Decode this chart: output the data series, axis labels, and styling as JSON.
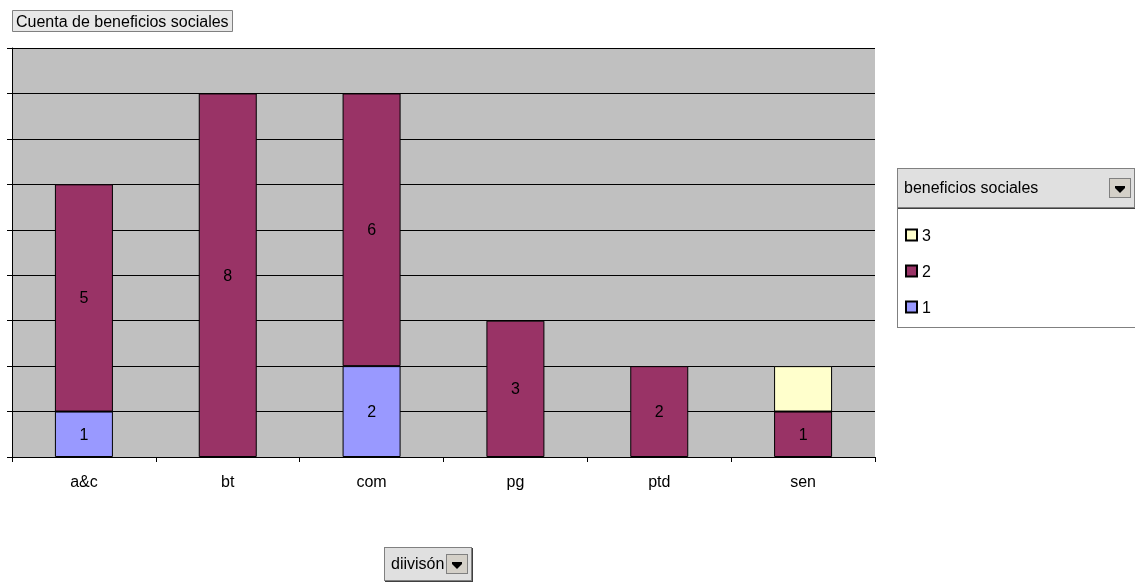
{
  "chart_data": {
    "type": "bar",
    "title": "Cuenta de beneficios sociales",
    "xlabel": "diivisón",
    "legend_title": "beneficios sociales",
    "categories": [
      "a&c",
      "bt",
      "com",
      "pg",
      "ptd",
      "sen"
    ],
    "stacked": true,
    "series": [
      {
        "name": "1",
        "color": "#9999ff",
        "values": [
          1,
          null,
          2,
          null,
          null,
          null
        ],
        "value_labels": [
          "1",
          null,
          "2",
          null,
          null,
          null
        ]
      },
      {
        "name": "2",
        "color": "#993366",
        "values": [
          5,
          8,
          6,
          3,
          2,
          1
        ],
        "value_labels": [
          "5",
          "8",
          "6",
          "3",
          "2",
          "1"
        ]
      },
      {
        "name": "3",
        "color": "#ffffcc",
        "values": [
          null,
          null,
          null,
          null,
          null,
          1
        ],
        "value_labels": [
          null,
          null,
          null,
          null,
          null,
          null
        ]
      }
    ],
    "ylim": [
      0,
      9
    ],
    "yticks": [
      {
        "value": 0,
        "label": null
      },
      {
        "value": 1,
        "label": null
      },
      {
        "value": 2,
        "label": null
      },
      {
        "value": 3,
        "label": null
      },
      {
        "value": 4,
        "label": null
      },
      {
        "value": 5,
        "label": null
      },
      {
        "value": 6,
        "label": null
      },
      {
        "value": 7,
        "label": null
      },
      {
        "value": 8,
        "label": null
      },
      {
        "value": 9,
        "label": null
      }
    ],
    "tick_labels": "x",
    "grid": "y",
    "legend": "right"
  }
}
